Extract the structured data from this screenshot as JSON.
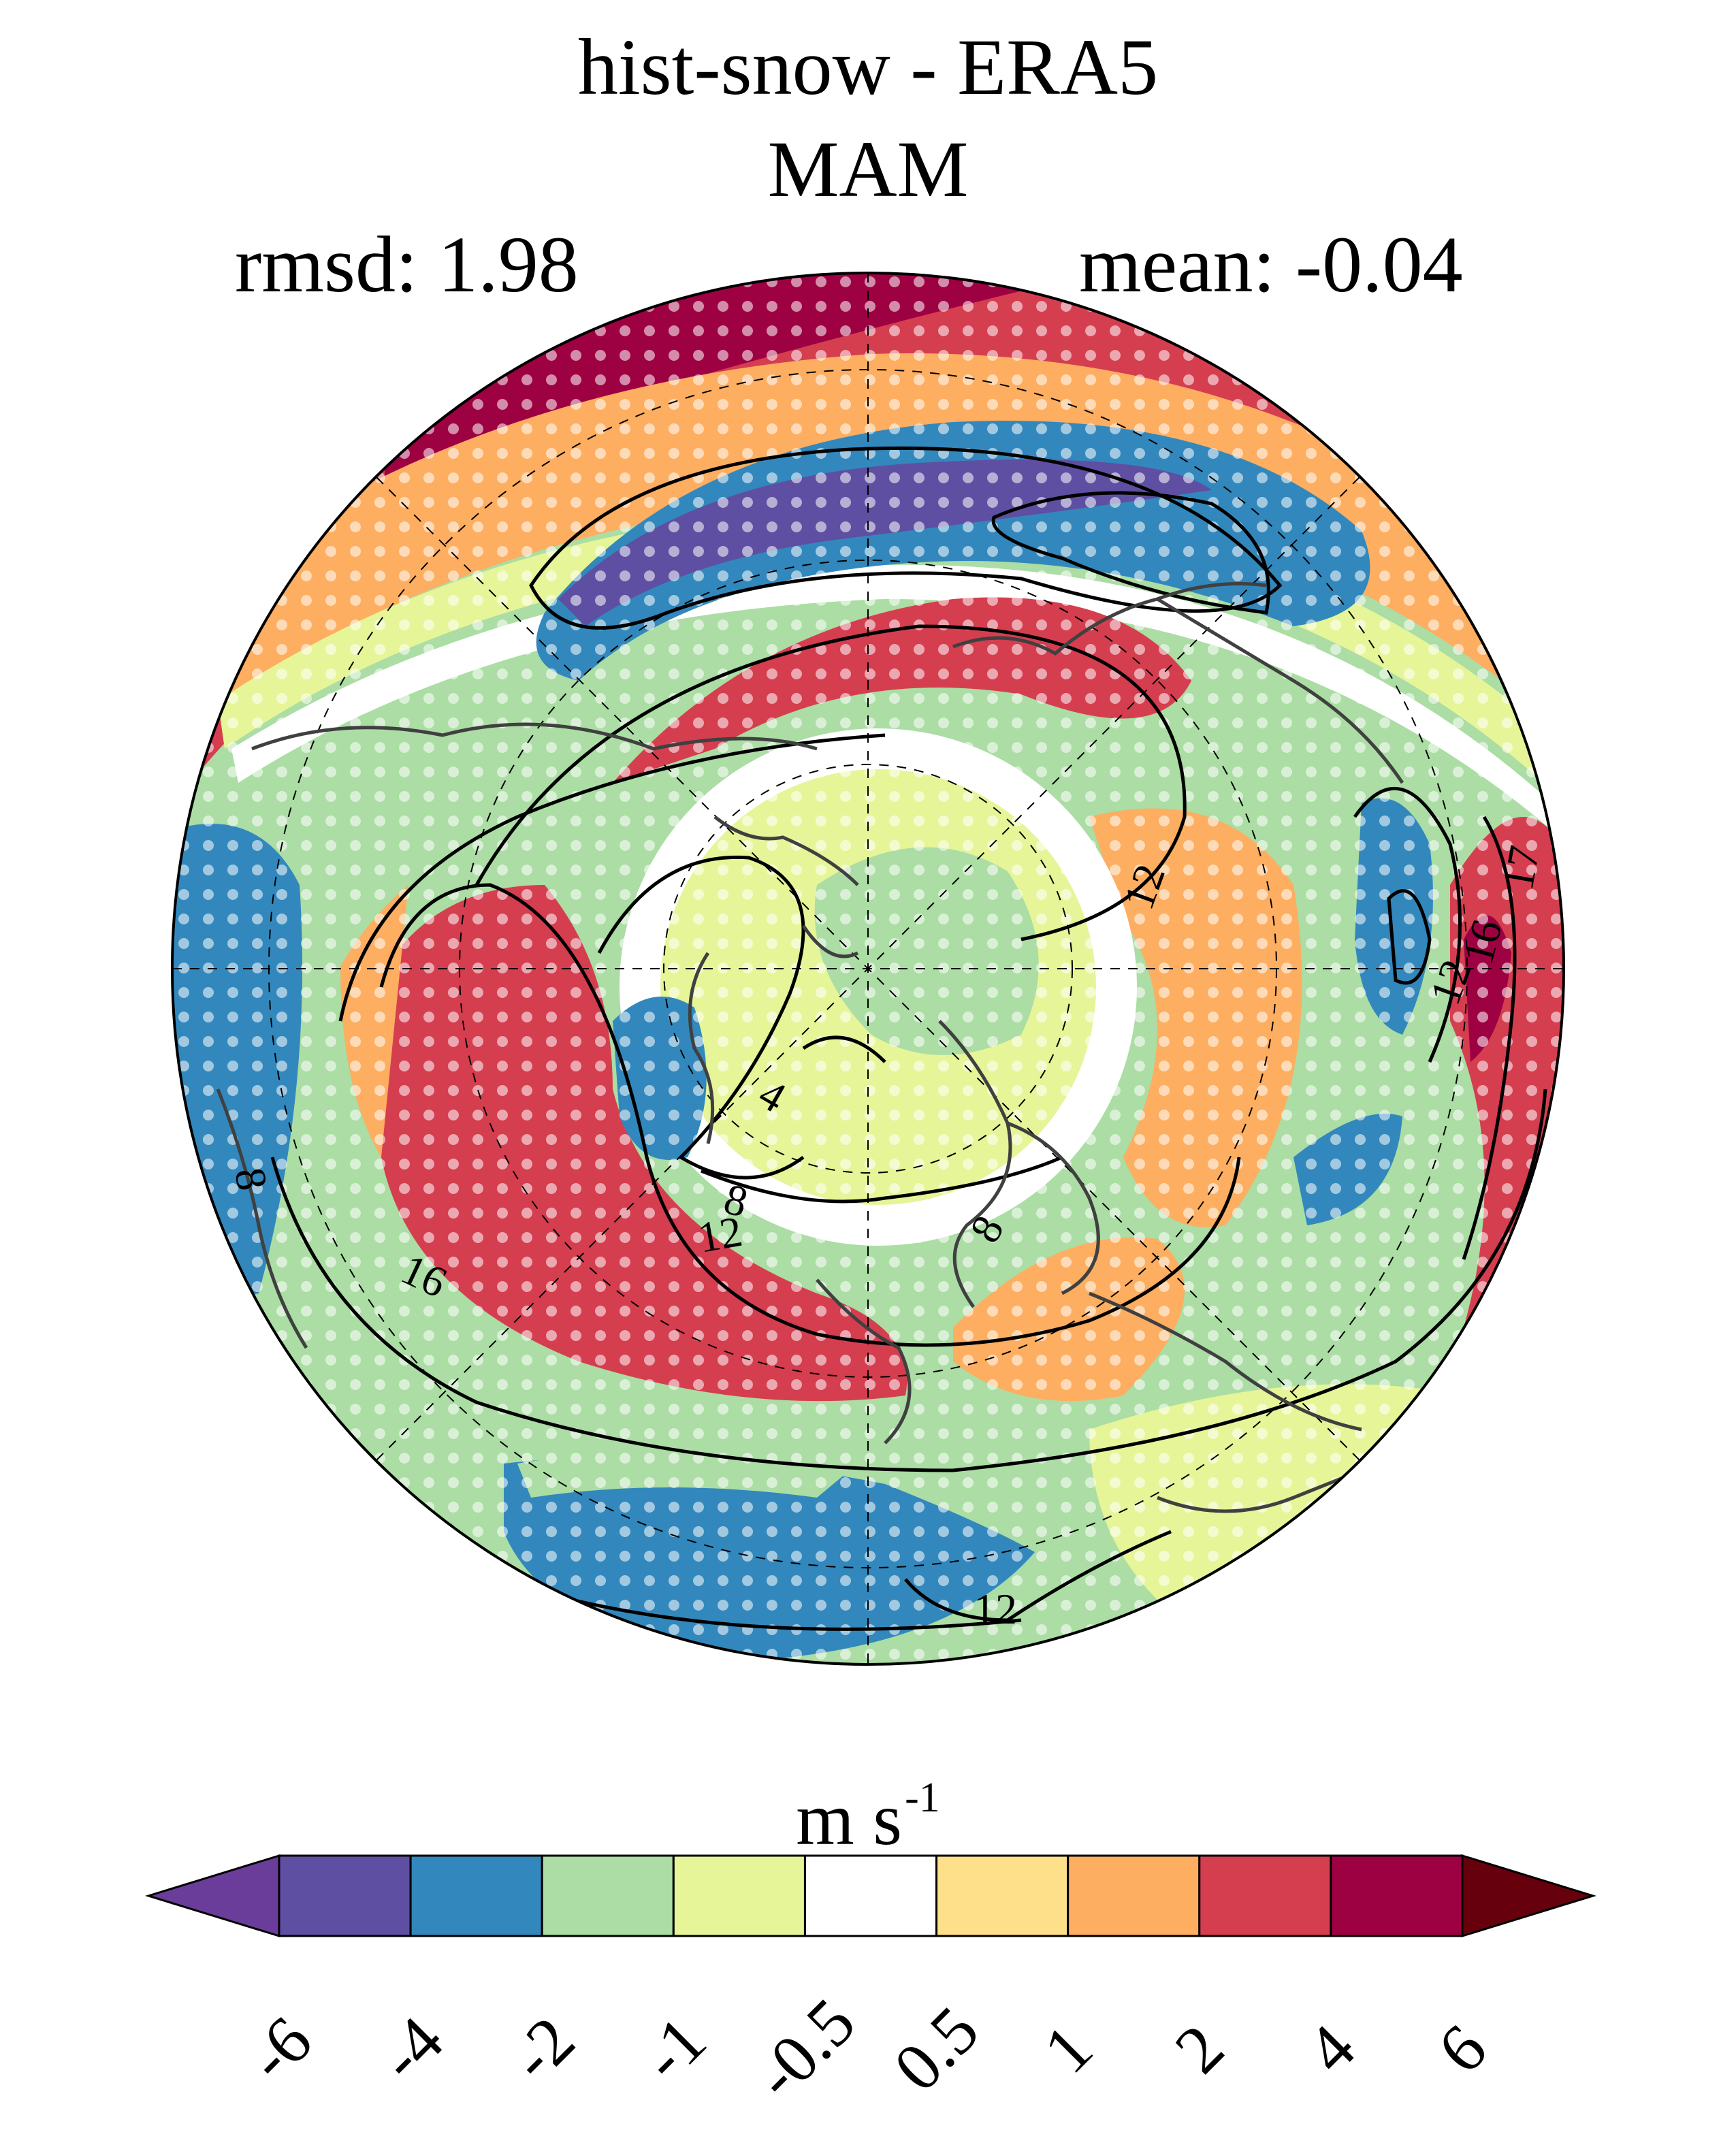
{
  "figure": {
    "title": "hist-snow - ERA5",
    "season": "MAM",
    "rmsd_label": "rmsd: 1.98",
    "mean_label": "mean: -0.04"
  },
  "colorbar": {
    "units_main": "m s",
    "units_exp": "-1",
    "ticks": [
      "-6",
      "-4",
      "-2",
      "-1",
      "-0.5",
      "0.5",
      "1",
      "2",
      "4",
      "6"
    ],
    "colors": [
      "#5e4fa2",
      "#3288bd",
      "#abdda4",
      "#e6f598",
      "#ffffff",
      "#fee08b",
      "#fdae61",
      "#d53e4f",
      "#9e0142"
    ],
    "under_color": "#6a3d9a",
    "over_color": "#67000d"
  },
  "map": {
    "projection": "north-polar-stereographic",
    "contour_labels": [
      "12",
      "16",
      "17",
      "12",
      "4",
      "8",
      "12",
      "8",
      "16",
      "8",
      "12"
    ]
  }
}
